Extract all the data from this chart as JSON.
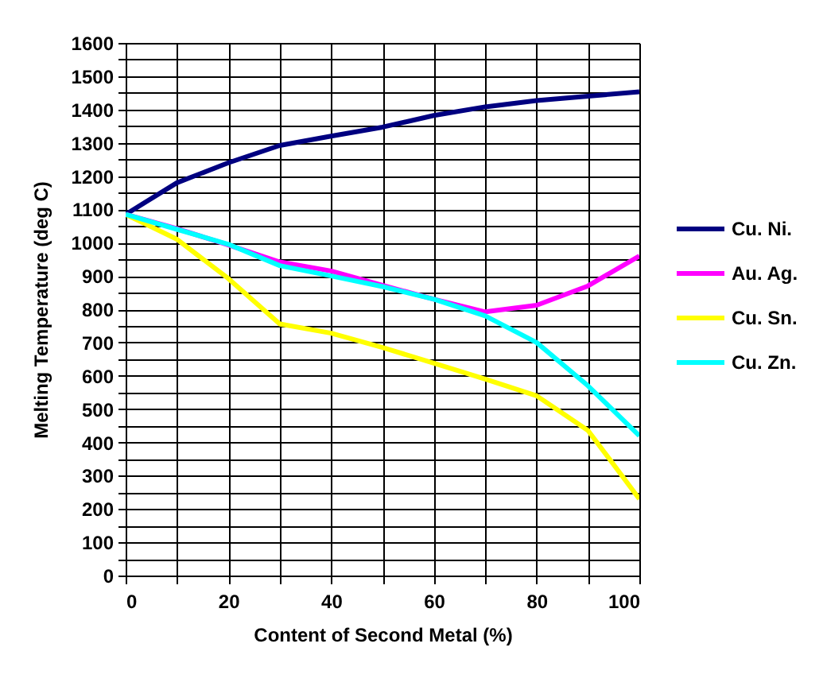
{
  "chart_data": {
    "type": "line",
    "xlabel": "Content of Second Metal (%)",
    "ylabel": "Melting Temperature (deg C)",
    "x": [
      0,
      10,
      20,
      30,
      40,
      50,
      60,
      70,
      80,
      90,
      100
    ],
    "series": [
      {
        "name": "Cu. Ni.",
        "color": "#000080",
        "values": [
          1085,
          1180,
          1240,
          1292,
          1320,
          1347,
          1382,
          1408,
          1427,
          1440,
          1453
        ]
      },
      {
        "name": "Au. Ag.",
        "color": "#ff00ff",
        "values": [
          1085,
          1042,
          993,
          942,
          915,
          872,
          830,
          792,
          812,
          870,
          960
        ]
      },
      {
        "name": "Cu. Sn.",
        "color": "#ffff00",
        "values": [
          1085,
          1010,
          892,
          756,
          728,
          685,
          638,
          590,
          540,
          436,
          230
        ]
      },
      {
        "name": "Cu. Zn.",
        "color": "#00ffff",
        "values": [
          1085,
          1040,
          995,
          931,
          900,
          868,
          830,
          780,
          700,
          570,
          420
        ]
      }
    ],
    "xlim": [
      0,
      100
    ],
    "ylim": [
      0,
      1600
    ],
    "xticks": [
      0,
      {
        "value": 10,
        "label": null
      },
      20,
      {
        "value": 30,
        "label": null
      },
      40,
      {
        "value": 50,
        "label": null
      },
      60,
      {
        "value": 70,
        "label": null
      },
      80,
      {
        "value": 90,
        "label": null
      },
      100
    ],
    "yticks": [
      0,
      {
        "value": 50,
        "label": null
      },
      100,
      {
        "value": 150,
        "label": null
      },
      200,
      {
        "value": 250,
        "label": null
      },
      300,
      {
        "value": 350,
        "label": null
      },
      400,
      {
        "value": 450,
        "label": null
      },
      500,
      {
        "value": 550,
        "label": null
      },
      600,
      {
        "value": 650,
        "label": null
      },
      700,
      {
        "value": 750,
        "label": null
      },
      800,
      {
        "value": 850,
        "label": null
      },
      900,
      {
        "value": 950,
        "label": null
      },
      1000,
      {
        "value": 1050,
        "label": null
      },
      1100,
      {
        "value": 1150,
        "label": null
      },
      1200,
      {
        "value": 1250,
        "label": null
      },
      1300,
      {
        "value": 1350,
        "label": null
      },
      1400,
      {
        "value": 1450,
        "label": null
      },
      1500,
      {
        "value": 1550,
        "label": null
      },
      1600
    ],
    "grid": true,
    "legend": "right"
  }
}
